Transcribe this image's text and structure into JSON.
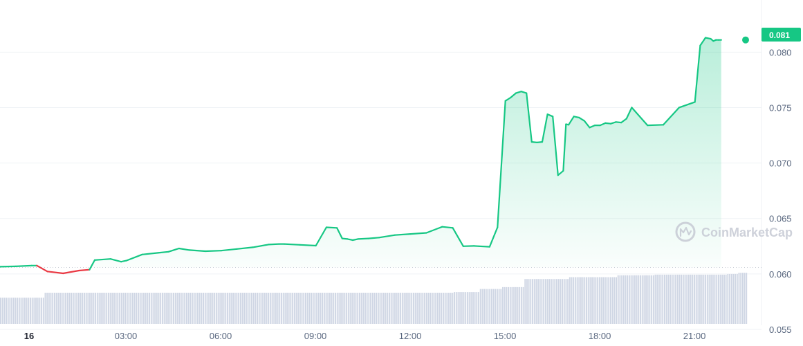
{
  "chart_data": {
    "type": "area",
    "y_axis_position": "right",
    "ylim": [
      0.0535,
      0.0847
    ],
    "y_ticks": [
      "0.055",
      "0.060",
      "0.065",
      "0.070",
      "0.075",
      "0.080"
    ],
    "x_ticks": [
      "16",
      "03:00",
      "06:00",
      "09:00",
      "12:00",
      "15:00",
      "18:00",
      "21:00"
    ],
    "baseline": 0.06058,
    "current_value_label": "0.081",
    "watermark": "CoinMarketCap",
    "colors": {
      "up": "#16c784",
      "down": "#ea3943",
      "volume": "#cfd6e4",
      "grid": "#eff2f5",
      "text": "#58667e"
    },
    "series": [
      {
        "x": [
          "00:00",
          "00:30",
          "01:00",
          "01:10",
          "01:30",
          "02:00",
          "02:30",
          "02:50",
          "03:00",
          "03:30",
          "03:50",
          "04:00",
          "04:30",
          "05:00",
          "05:20",
          "05:40",
          "06:00",
          "06:30",
          "07:00",
          "07:30",
          "08:00",
          "08:30",
          "08:50",
          "09:00",
          "09:30",
          "10:00",
          "10:20",
          "10:40",
          "10:50",
          "11:00",
          "11:10",
          "11:20",
          "11:40",
          "12:00",
          "12:30",
          "13:00",
          "13:30",
          "14:00",
          "14:20",
          "14:40",
          "15:00",
          "15:10",
          "15:30",
          "15:45",
          "16:00",
          "16:10",
          "16:20",
          "16:30",
          "16:40",
          "16:50",
          "17:00",
          "17:10",
          "17:20",
          "17:30",
          "17:40",
          "17:50",
          "17:55",
          "18:00",
          "18:10",
          "18:20",
          "18:30",
          "18:40",
          "18:50",
          "19:00",
          "19:10",
          "19:20",
          "19:30",
          "19:40",
          "19:50",
          "20:00",
          "20:30",
          "21:00",
          "21:30",
          "22:00",
          "22:10",
          "22:20",
          "22:30",
          "22:35",
          "22:40",
          "22:45",
          "22:50"
        ],
        "values": [
          0.06065,
          0.06068,
          0.06075,
          0.06075,
          0.06022,
          0.06005,
          0.0603,
          0.06038,
          0.06125,
          0.06135,
          0.0611,
          0.0612,
          0.06175,
          0.0619,
          0.062,
          0.0623,
          0.06215,
          0.06205,
          0.0621,
          0.06225,
          0.0624,
          0.06265,
          0.0627,
          0.0627,
          0.06262,
          0.06255,
          0.0642,
          0.06415,
          0.0632,
          0.06315,
          0.06305,
          0.06315,
          0.0632,
          0.06328,
          0.0635,
          0.0636,
          0.0637,
          0.06425,
          0.06415,
          0.0625,
          0.06252,
          0.0625,
          0.06245,
          0.0642,
          0.0756,
          0.0759,
          0.0763,
          0.07645,
          0.0763,
          0.0719,
          0.07185,
          0.0719,
          0.0744,
          0.0742,
          0.0689,
          0.0693,
          0.0735,
          0.07345,
          0.0742,
          0.0741,
          0.0738,
          0.0732,
          0.0734,
          0.0734,
          0.0736,
          0.07355,
          0.0737,
          0.07365,
          0.074,
          0.075,
          0.0734,
          0.07345,
          0.075,
          0.0755,
          0.0806,
          0.0813,
          0.0812,
          0.081,
          0.0811,
          0.0811,
          0.0811
        ]
      }
    ],
    "volume_relative": [
      0.42,
      0.42,
      0.42,
      0.42,
      0.42,
      0.42,
      0.42,
      0.42,
      0.42,
      0.42,
      0.42,
      0.42,
      0.42,
      0.42,
      0.42,
      0.42,
      0.42,
      0.42,
      0.42,
      0.42,
      0.42,
      0.42,
      0.42,
      0.42,
      0.5,
      0.5,
      0.5,
      0.5,
      0.5,
      0.5,
      0.5,
      0.5,
      0.5,
      0.5,
      0.5,
      0.5,
      0.5,
      0.5,
      0.5,
      0.5,
      0.5,
      0.5,
      0.5,
      0.5,
      0.5,
      0.5,
      0.5,
      0.5,
      0.5,
      0.5,
      0.5,
      0.5,
      0.5,
      0.5,
      0.5,
      0.5,
      0.5,
      0.5,
      0.5,
      0.5,
      0.5,
      0.5,
      0.5,
      0.5,
      0.5,
      0.5,
      0.5,
      0.5,
      0.5,
      0.5,
      0.5,
      0.5,
      0.5,
      0.5,
      0.5,
      0.5,
      0.5,
      0.5,
      0.5,
      0.5,
      0.5,
      0.5,
      0.5,
      0.5,
      0.5,
      0.5,
      0.5,
      0.5,
      0.5,
      0.5,
      0.5,
      0.5,
      0.5,
      0.5,
      0.5,
      0.5,
      0.5,
      0.5,
      0.5,
      0.5,
      0.5,
      0.5,
      0.5,
      0.5,
      0.5,
      0.5,
      0.5,
      0.5,
      0.5,
      0.5,
      0.5,
      0.5,
      0.5,
      0.5,
      0.5,
      0.5,
      0.5,
      0.5,
      0.5,
      0.5,
      0.5,
      0.5,
      0.5,
      0.5,
      0.5,
      0.5,
      0.5,
      0.5,
      0.5,
      0.5,
      0.5,
      0.5,
      0.5,
      0.5,
      0.5,
      0.5,
      0.5,
      0.5,
      0.5,
      0.5,
      0.5,
      0.5,
      0.5,
      0.5,
      0.5,
      0.5,
      0.5,
      0.5,
      0.5,
      0.5,
      0.5,
      0.5,
      0.5,
      0.5,
      0.5,
      0.5,
      0.5,
      0.5,
      0.5,
      0.5,
      0.5,
      0.5,
      0.5,
      0.5,
      0.5,
      0.5,
      0.5,
      0.5,
      0.5,
      0.5,
      0.5,
      0.5,
      0.5,
      0.5,
      0.5,
      0.5,
      0.5,
      0.5,
      0.5,
      0.5,
      0.5,
      0.5,
      0.5,
      0.5,
      0.5,
      0.5,
      0.5,
      0.5,
      0.5,
      0.5,
      0.5,
      0.5,
      0.5,
      0.5,
      0.5,
      0.5,
      0.5,
      0.5,
      0.5,
      0.5,
      0.5,
      0.5,
      0.5,
      0.5,
      0.5,
      0.5,
      0.5,
      0.5,
      0.5,
      0.5,
      0.5,
      0.5,
      0.5,
      0.5,
      0.5,
      0.5,
      0.5,
      0.5,
      0.5,
      0.5,
      0.5,
      0.5,
      0.5,
      0.5,
      0.5,
      0.5,
      0.5,
      0.5,
      0.5,
      0.5,
      0.5,
      0.5,
      0.5,
      0.5,
      0.5,
      0.5,
      0.5,
      0.5,
      0.5,
      0.5,
      0.5,
      0.5,
      0.5,
      0.5,
      0.51,
      0.51,
      0.51,
      0.51,
      0.51,
      0.51,
      0.51,
      0.51,
      0.51,
      0.51,
      0.51,
      0.51,
      0.51,
      0.51,
      0.56,
      0.56,
      0.56,
      0.56,
      0.56,
      0.56,
      0.56,
      0.56,
      0.56,
      0.56,
      0.56,
      0.56,
      0.59,
      0.59,
      0.59,
      0.59,
      0.59,
      0.59,
      0.59,
      0.59,
      0.59,
      0.59,
      0.59,
      0.59,
      0.72,
      0.72,
      0.72,
      0.72,
      0.72,
      0.72,
      0.72,
      0.72,
      0.72,
      0.72,
      0.72,
      0.72,
      0.72,
      0.72,
      0.72,
      0.72,
      0.72,
      0.72,
      0.72,
      0.72,
      0.72,
      0.72,
      0.72,
      0.72,
      0.75,
      0.75,
      0.75,
      0.75,
      0.75,
      0.75,
      0.75,
      0.75,
      0.75,
      0.75,
      0.75,
      0.75,
      0.75,
      0.75,
      0.75,
      0.75,
      0.75,
      0.75,
      0.75,
      0.75,
      0.75,
      0.75,
      0.75,
      0.75,
      0.75,
      0.75,
      0.78,
      0.78,
      0.78,
      0.78,
      0.78,
      0.78,
      0.78,
      0.78,
      0.78,
      0.78,
      0.78,
      0.78,
      0.78,
      0.78,
      0.78,
      0.78,
      0.78,
      0.78,
      0.78,
      0.78,
      0.79,
      0.79,
      0.79,
      0.79,
      0.79,
      0.79,
      0.79,
      0.79,
      0.79,
      0.79,
      0.79,
      0.79,
      0.79,
      0.79,
      0.79,
      0.79,
      0.79,
      0.79,
      0.79,
      0.79,
      0.79,
      0.79,
      0.79,
      0.79,
      0.79,
      0.79,
      0.79,
      0.79,
      0.79,
      0.79,
      0.79,
      0.79,
      0.79,
      0.79,
      0.79,
      0.79,
      0.79,
      0.79,
      0.79,
      0.8,
      0.8,
      0.8,
      0.8,
      0.8,
      0.8,
      0.82,
      0.82,
      0.82,
      0.82,
      0.82
    ]
  }
}
